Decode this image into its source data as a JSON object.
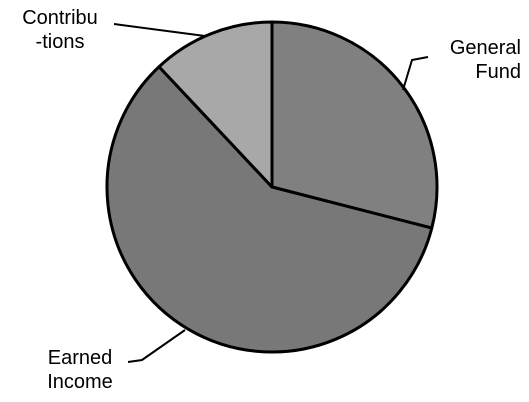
{
  "chart_data": {
    "type": "pie",
    "categories": [
      "General\nFund",
      "Earned\nIncome",
      "Contribu\n-tions"
    ],
    "values": [
      29,
      59,
      12
    ],
    "colors": [
      "#808080",
      "#787878",
      "#a8a8a8"
    ]
  }
}
